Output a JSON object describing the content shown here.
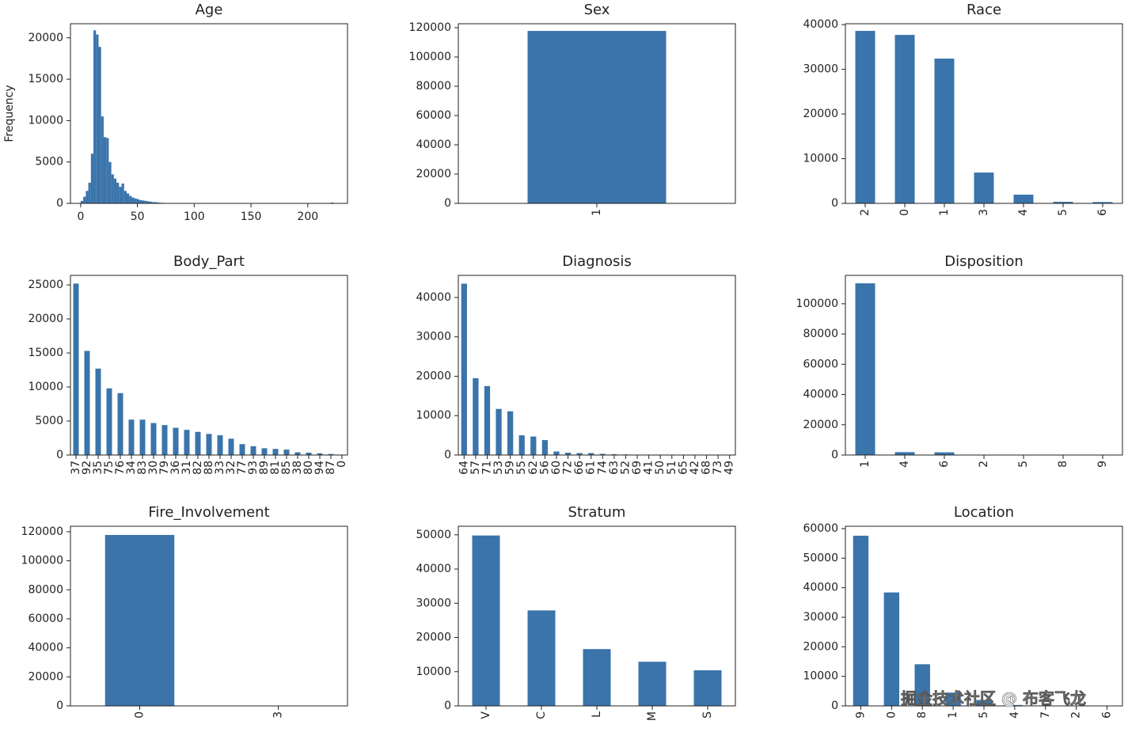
{
  "chart_data": [
    {
      "type": "histogram",
      "title": "Age",
      "y_label": "Frequency",
      "color": "#3a74ab",
      "bins": [
        0,
        2.25,
        4.5,
        6.75,
        9,
        11.25,
        13.5,
        15.75,
        18,
        20.25,
        22.5,
        24.75,
        27,
        29.25,
        31.5,
        33.75,
        36,
        38.25,
        40.5,
        42.75,
        45,
        47.25,
        49.5,
        51.75,
        54,
        56.25,
        58.5,
        60.75,
        63,
        65.25,
        67.5,
        69.75,
        72,
        74.25,
        76.5,
        78.75,
        81,
        83.25,
        85.5,
        87.75,
        90,
        92.25,
        94.5,
        96.75,
        99,
        101.25,
        103.5,
        105.75,
        108,
        110.25,
        112.5,
        114.75,
        117,
        119.25,
        121.5,
        123.75,
        126,
        128.25,
        130.5,
        132.75,
        135,
        137.25,
        139.5,
        141.75,
        144,
        146.25,
        148.5,
        150.75,
        153,
        155.25,
        157.5,
        159.75,
        162,
        164.25,
        166.5,
        168.75,
        171,
        173.25,
        175.5,
        177.75,
        180,
        182.25,
        184.5,
        186.75,
        189,
        191.25,
        193.5,
        195.75,
        198,
        200.25,
        202.5,
        204.75,
        207,
        209.25,
        211.5,
        213.75,
        216,
        218.25,
        220.5,
        222.75,
        225
      ],
      "values": [
        300,
        800,
        1500,
        2500,
        6000,
        20900,
        20400,
        18900,
        10500,
        8000,
        7900,
        5000,
        3500,
        3000,
        2500,
        2000,
        2400,
        1500,
        1200,
        900,
        700,
        600,
        500,
        400,
        350,
        300,
        250,
        200,
        150,
        150,
        100,
        80,
        60,
        40,
        0,
        0,
        0,
        0,
        0,
        0,
        0,
        0,
        0,
        0,
        0,
        0,
        0,
        0,
        0,
        0,
        0,
        0,
        0,
        0,
        0,
        0,
        0,
        0,
        0,
        0,
        0,
        0,
        0,
        0,
        0,
        0,
        0,
        0,
        0,
        0,
        0,
        0,
        0,
        0,
        0,
        0,
        0,
        0,
        0,
        0,
        0,
        0,
        0,
        0,
        0,
        0,
        0,
        0,
        0,
        0,
        0,
        0,
        0,
        0,
        0,
        0,
        0,
        0,
        100,
        0
      ],
      "xlim": [
        -9,
        235
      ],
      "xticks": [
        0,
        50,
        100,
        150,
        200
      ],
      "ylim": [
        0,
        21700
      ],
      "yticks": [
        0,
        5000,
        10000,
        15000,
        20000
      ]
    },
    {
      "type": "bar",
      "title": "Sex",
      "color": "#3a74ab",
      "categories": [
        "1"
      ],
      "values": [
        117800
      ],
      "ylim": [
        0,
        122700
      ],
      "yticks": [
        0,
        20000,
        40000,
        60000,
        80000,
        100000,
        120000
      ]
    },
    {
      "type": "bar",
      "title": "Race",
      "color": "#3a74ab",
      "categories": [
        "2",
        "0",
        "1",
        "3",
        "4",
        "5",
        "6"
      ],
      "values": [
        38600,
        37700,
        32400,
        6900,
        1950,
        350,
        300
      ],
      "ylim": [
        0,
        40200
      ],
      "yticks": [
        0,
        10000,
        20000,
        30000,
        40000
      ]
    },
    {
      "type": "bar",
      "title": "Body_Part",
      "color": "#3a74ab",
      "categories": [
        "37",
        "92",
        "35",
        "75",
        "76",
        "34",
        "83",
        "30",
        "79",
        "36",
        "31",
        "82",
        "88",
        "33",
        "32",
        "77",
        "93",
        "89",
        "81",
        "85",
        "38",
        "80",
        "94",
        "87",
        "0"
      ],
      "values": [
        25200,
        15300,
        12700,
        9800,
        9100,
        5200,
        5200,
        4700,
        4400,
        4000,
        3700,
        3400,
        3100,
        2900,
        2400,
        1600,
        1300,
        1000,
        900,
        800,
        400,
        350,
        250,
        150,
        50
      ],
      "ylim": [
        0,
        26400
      ],
      "yticks": [
        0,
        5000,
        10000,
        15000,
        20000,
        25000
      ]
    },
    {
      "type": "bar",
      "title": "Diagnosis",
      "color": "#3a74ab",
      "categories": [
        "64",
        "57",
        "71",
        "53",
        "59",
        "55",
        "62",
        "56",
        "60",
        "72",
        "66",
        "61",
        "74",
        "63",
        "52",
        "69",
        "41",
        "50",
        "51",
        "65",
        "42",
        "68",
        "73",
        "49"
      ],
      "values": [
        43500,
        19500,
        17500,
        11700,
        11100,
        5000,
        4700,
        3800,
        900,
        600,
        500,
        500,
        300,
        200,
        150,
        100,
        100,
        80,
        70,
        60,
        50,
        40,
        30,
        20
      ],
      "ylim": [
        0,
        45600
      ],
      "yticks": [
        0,
        10000,
        20000,
        30000,
        40000
      ]
    },
    {
      "type": "bar",
      "title": "Disposition",
      "color": "#3a74ab",
      "categories": [
        "1",
        "4",
        "6",
        "2",
        "5",
        "8",
        "9"
      ],
      "values": [
        113500,
        1900,
        1800,
        200,
        100,
        50,
        20
      ],
      "ylim": [
        0,
        118750
      ],
      "yticks": [
        0,
        20000,
        40000,
        60000,
        80000,
        100000
      ]
    },
    {
      "type": "bar",
      "title": "Fire_Involvement",
      "color": "#3a74ab",
      "categories": [
        "0",
        "3"
      ],
      "values": [
        117800,
        150
      ],
      "ylim": [
        0,
        123800
      ],
      "yticks": [
        0,
        20000,
        40000,
        60000,
        80000,
        100000,
        120000
      ]
    },
    {
      "type": "bar",
      "title": "Stratum",
      "color": "#3a74ab",
      "categories": [
        "V",
        "C",
        "L",
        "M",
        "S"
      ],
      "values": [
        49800,
        27900,
        16600,
        12900,
        10400
      ],
      "ylim": [
        0,
        52500
      ],
      "yticks": [
        0,
        10000,
        20000,
        30000,
        40000,
        50000
      ]
    },
    {
      "type": "bar",
      "title": "Location",
      "color": "#3a74ab",
      "categories": [
        "9",
        "0",
        "8",
        "1",
        "5",
        "4",
        "7",
        "2",
        "6"
      ],
      "values": [
        57600,
        38400,
        14100,
        4500,
        2000,
        300,
        100,
        50,
        20
      ],
      "ylim": [
        0,
        60800
      ],
      "yticks": [
        0,
        10000,
        20000,
        30000,
        40000,
        50000,
        60000
      ]
    }
  ],
  "watermark": "掘金技术社区 @ 布客飞龙"
}
